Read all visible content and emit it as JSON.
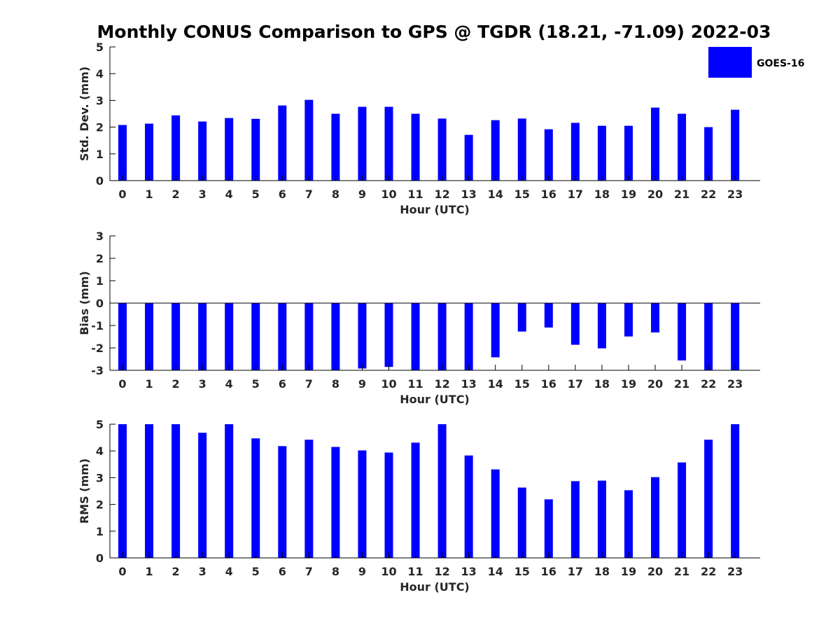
{
  "title": "Monthly CONUS Comparison to GPS @ TGDR (18.21, -71.09) 2022-03",
  "legend": {
    "label": "GOES-16",
    "color": "#0000ff",
    "placement": "top-right"
  },
  "chart_data": [
    {
      "type": "bar",
      "xlabel": "Hour (UTC)",
      "ylabel": "Std. Dev. (mm)",
      "ylim": [
        0,
        5
      ],
      "yticks": [
        "0",
        "1",
        "2",
        "3",
        "4",
        "5"
      ],
      "categories": [
        "0",
        "1",
        "2",
        "3",
        "4",
        "5",
        "6",
        "7",
        "8",
        "9",
        "10",
        "11",
        "12",
        "13",
        "14",
        "15",
        "16",
        "17",
        "18",
        "19",
        "20",
        "21",
        "22",
        "23"
      ],
      "series": [
        {
          "name": "GOES-16",
          "values": [
            2.08,
            2.13,
            2.44,
            2.21,
            2.34,
            2.31,
            2.81,
            3.02,
            2.5,
            2.76,
            2.76,
            2.5,
            2.32,
            1.71,
            2.26,
            2.32,
            1.92,
            2.16,
            2.05,
            2.05,
            2.73,
            2.5,
            2.0,
            2.65
          ]
        }
      ],
      "grid": false
    },
    {
      "type": "bar",
      "xlabel": "Hour (UTC)",
      "ylabel": "Bias (mm)",
      "ylim": [
        -3,
        3
      ],
      "yticks": [
        "-3",
        "-2",
        "-1",
        "0",
        "1",
        "2",
        "3"
      ],
      "categories": [
        "0",
        "1",
        "2",
        "3",
        "4",
        "5",
        "6",
        "7",
        "8",
        "9",
        "10",
        "11",
        "12",
        "13",
        "14",
        "15",
        "16",
        "17",
        "18",
        "19",
        "20",
        "21",
        "22",
        "23"
      ],
      "series": [
        {
          "name": "GOES-16",
          "values": [
            -3.0,
            -3.0,
            -3.0,
            -3.0,
            -3.0,
            -3.0,
            -3.0,
            -3.0,
            -3.0,
            -2.92,
            -2.85,
            -3.0,
            -3.0,
            -3.0,
            -2.42,
            -1.27,
            -1.09,
            -1.86,
            -2.02,
            -1.49,
            -1.31,
            -2.56,
            -3.0,
            -3.0
          ]
        }
      ],
      "grid": false
    },
    {
      "type": "bar",
      "xlabel": "Hour (UTC)",
      "ylabel": "RMS (mm)",
      "ylim": [
        0,
        5
      ],
      "yticks": [
        "0",
        "1",
        "2",
        "3",
        "4",
        "5"
      ],
      "categories": [
        "0",
        "1",
        "2",
        "3",
        "4",
        "5",
        "6",
        "7",
        "8",
        "9",
        "10",
        "11",
        "12",
        "13",
        "14",
        "15",
        "16",
        "17",
        "18",
        "19",
        "20",
        "21",
        "22",
        "23"
      ],
      "series": [
        {
          "name": "GOES-16",
          "values": [
            5.0,
            5.0,
            5.0,
            4.68,
            5.0,
            4.47,
            4.18,
            4.42,
            4.15,
            4.02,
            3.94,
            4.31,
            5.0,
            3.83,
            3.31,
            2.63,
            2.19,
            2.87,
            2.89,
            2.53,
            3.02,
            3.57,
            4.42,
            5.0
          ]
        }
      ],
      "grid": false
    }
  ]
}
